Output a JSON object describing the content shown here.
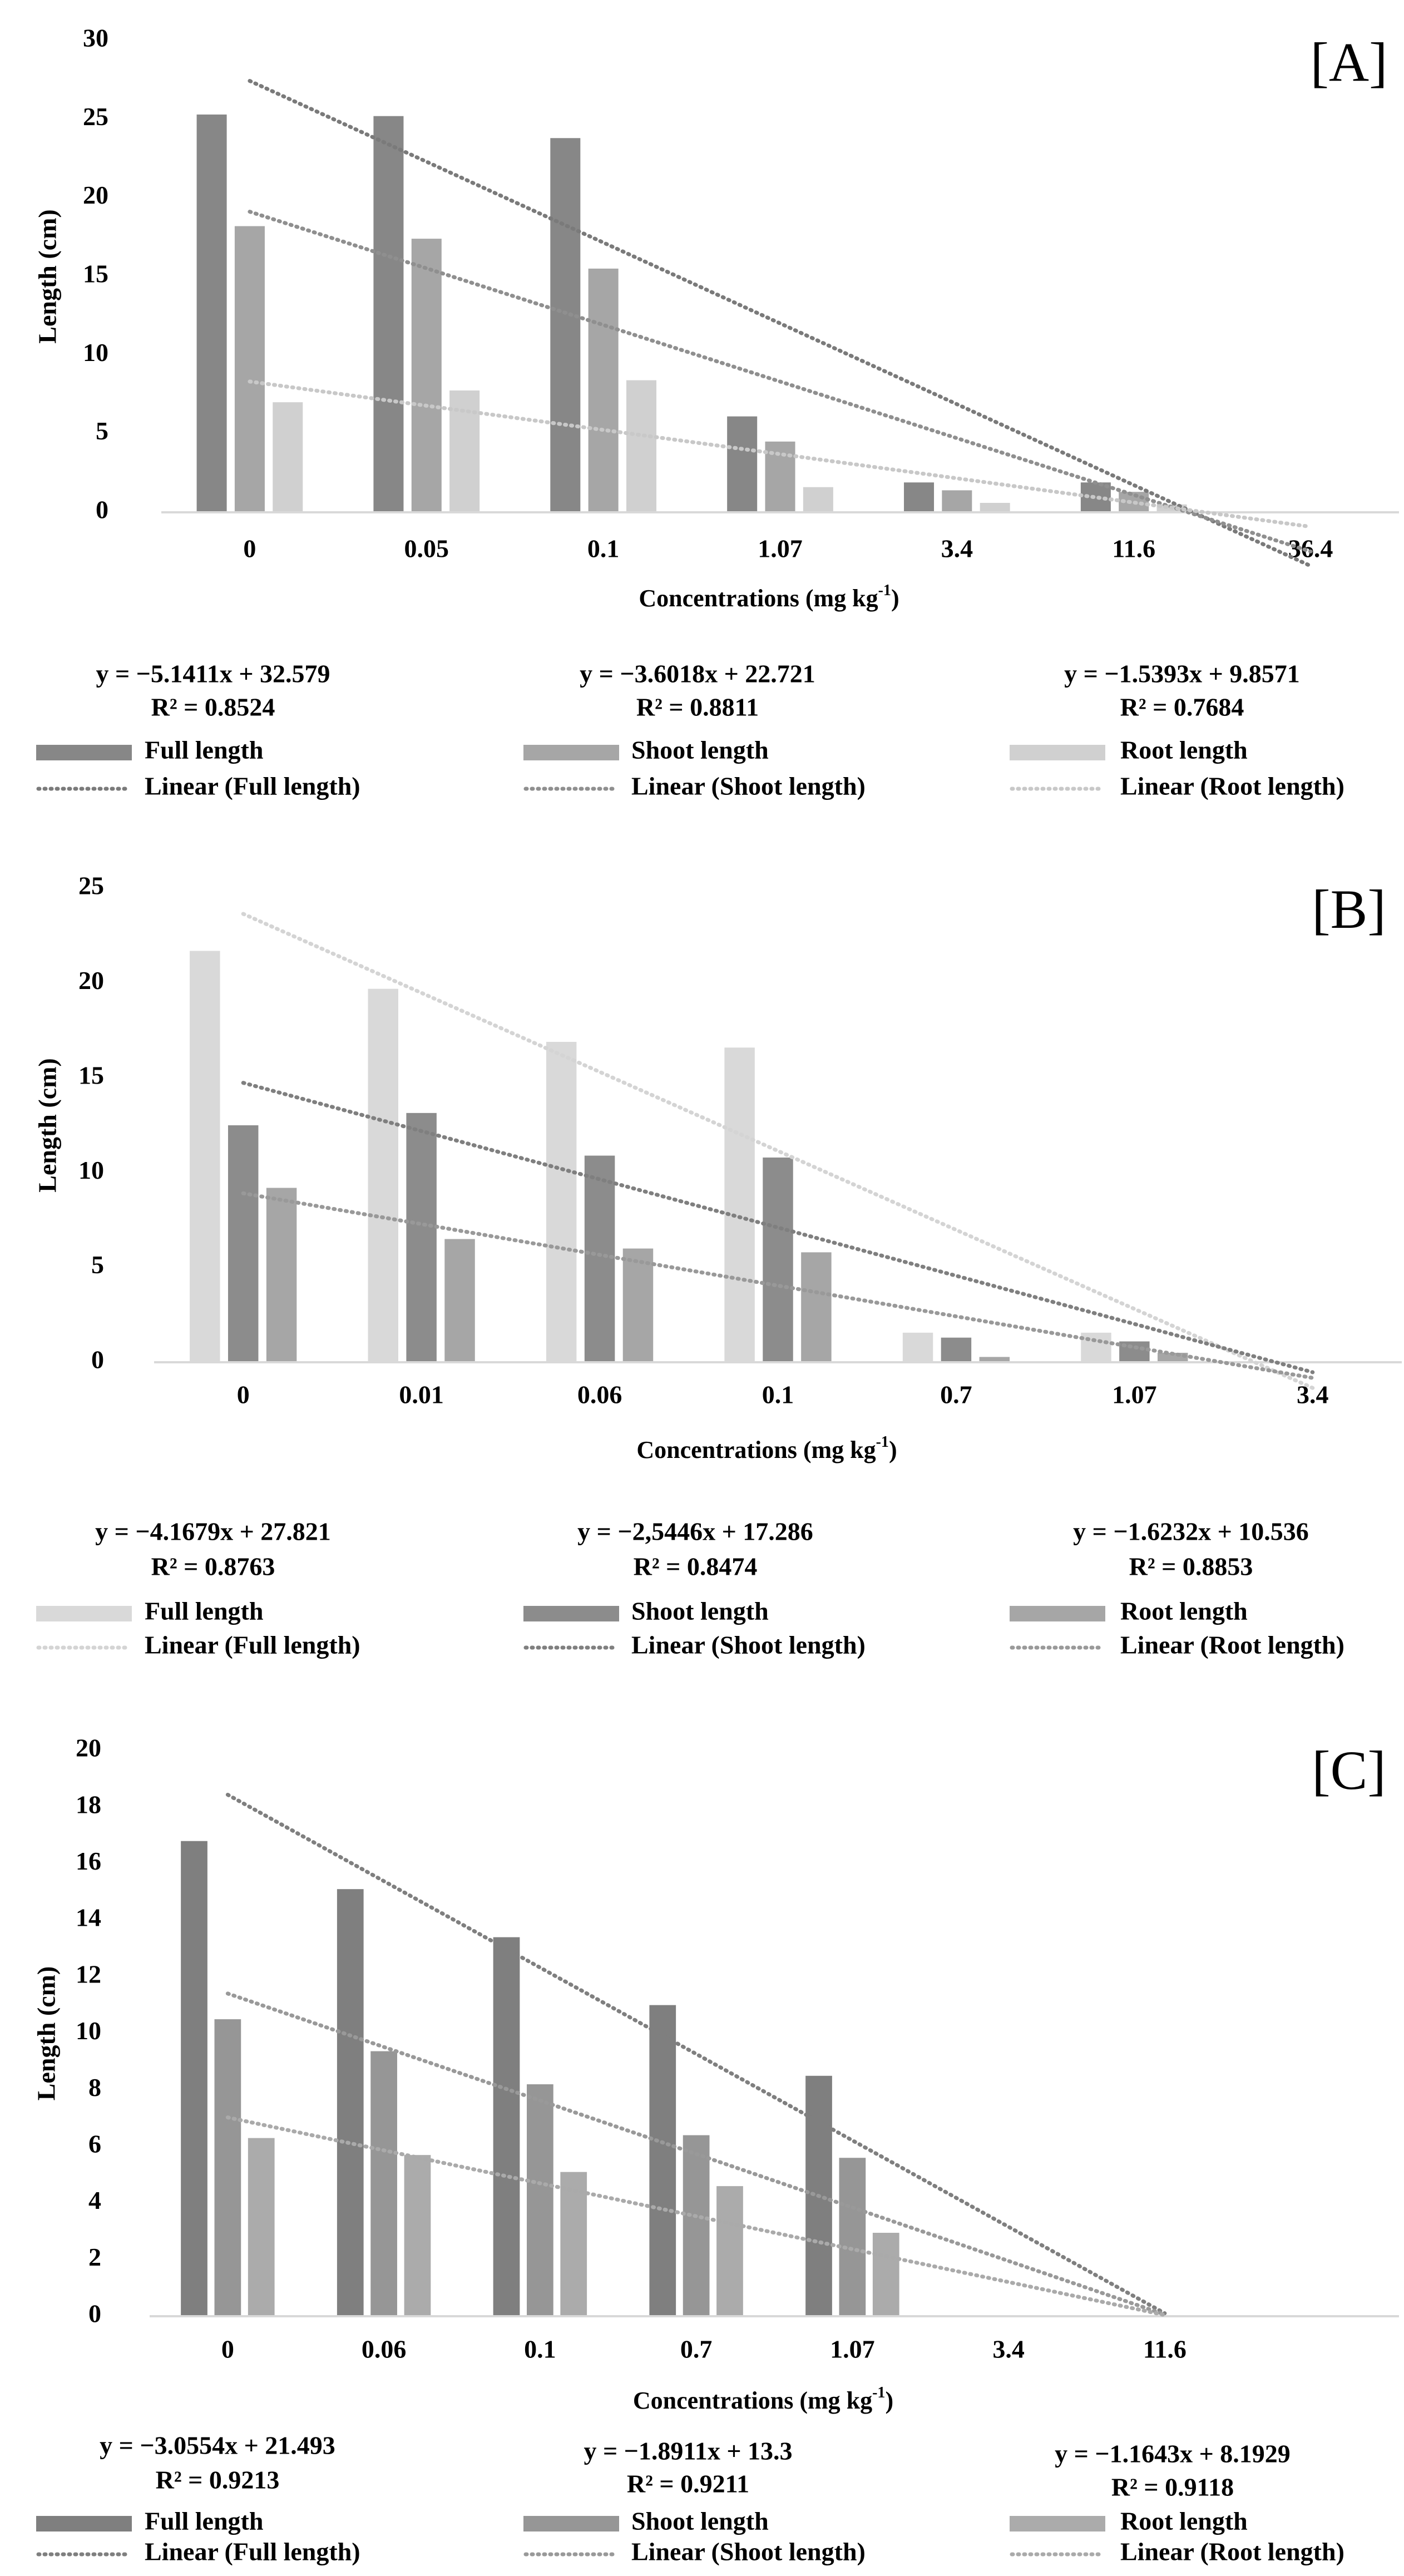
{
  "chart_data": [
    {
      "type": "bar",
      "panel_label": "[A]",
      "ylabel": "Length (cm)",
      "xlabel": "Concentrations (mg kg",
      "xlabel_sup": "-1",
      "xlabel_end": ")",
      "ylim": [
        0,
        30
      ],
      "yticks": [
        "0",
        "5",
        "10",
        "15",
        "20",
        "25",
        "30"
      ],
      "categories": [
        "0",
        "0.05",
        "0.1",
        "1.07",
        "3.4",
        "11.6",
        "36.4"
      ],
      "series": [
        {
          "name": "Full length",
          "color": "#878787",
          "values": [
            25.3,
            25.2,
            23.8,
            6.1,
            1.9,
            1.9,
            0
          ]
        },
        {
          "name": "Shoot length",
          "color": "#a6a6a6",
          "values": [
            18.2,
            17.4,
            15.5,
            4.5,
            1.4,
            1.3,
            0
          ]
        },
        {
          "name": "Root length",
          "color": "#d0d0d0",
          "values": [
            7.0,
            7.75,
            8.4,
            1.6,
            0.6,
            0.5,
            0
          ]
        }
      ],
      "trendlines": [
        {
          "name": "Linear (Full length)",
          "color": "#7a7a7a",
          "slope": -5.1411,
          "intercept": 32.579,
          "equation": "y = −5.1411x + 32.579",
          "r2": "R² = 0.8524"
        },
        {
          "name": "Linear (Shoot length)",
          "color": "#8f8f8f",
          "slope": -3.6018,
          "intercept": 22.721,
          "equation": "y = −3.6018x + 22.721",
          "r2": "R² = 0.8811"
        },
        {
          "name": "Linear (Root length)",
          "color": "#c8c8c8",
          "slope": -1.5393,
          "intercept": 9.8571,
          "equation": "y = −1.5393x + 9.8571",
          "r2": "R² = 0.7684"
        }
      ],
      "legend": "bottom"
    },
    {
      "type": "bar",
      "panel_label": "[B]",
      "ylabel": "Length  (cm)",
      "xlabel": "Concentrations (mg kg",
      "xlabel_sup": "-1",
      "xlabel_end": ")",
      "ylim": [
        0,
        25
      ],
      "yticks": [
        "0",
        "5",
        "10",
        "15",
        "20",
        "25"
      ],
      "categories": [
        "0",
        "0.01",
        "0.06",
        "0.1",
        "0.7",
        "1.07",
        "3.4"
      ],
      "series": [
        {
          "name": "Full length",
          "color": "#d9d9d9",
          "values": [
            21.7,
            19.7,
            16.9,
            16.6,
            1.56,
            1.56,
            0
          ]
        },
        {
          "name": "Shoot length",
          "color": "#8c8c8c",
          "values": [
            12.5,
            13.15,
            10.9,
            10.8,
            1.3,
            1.1,
            0
          ]
        },
        {
          "name": "Root length",
          "color": "#a6a6a6",
          "values": [
            9.2,
            6.5,
            6.0,
            5.8,
            0.28,
            0.5,
            0
          ]
        }
      ],
      "trendlines": [
        {
          "name": "Linear (Full length)",
          "color": "#d4d4d4",
          "slope": -4.1679,
          "intercept": 27.821,
          "equation": "y = −4.1679x + 27.821",
          "r2": "R² = 0.8763"
        },
        {
          "name": "Linear (Shoot length)",
          "color": "#7f7f7f",
          "slope": -2.5446,
          "intercept": 17.286,
          "equation": "y = −2,5446x + 17.286",
          "r2": "R² = 0.8474"
        },
        {
          "name": "Linear (Root length)",
          "color": "#999999",
          "slope": -1.6232,
          "intercept": 10.536,
          "equation": "y = −1.6232x + 10.536",
          "r2": "R² = 0.8853"
        }
      ],
      "legend": "bottom"
    },
    {
      "type": "bar",
      "panel_label": "[C]",
      "ylabel": "Length (cm)",
      "xlabel": "Concentrations (mg kg",
      "xlabel_sup": "-1",
      "xlabel_end": ")",
      "ylim": [
        0,
        20
      ],
      "yticks": [
        "0",
        "2",
        "4",
        "6",
        "8",
        "10",
        "12",
        "14",
        "16",
        "18",
        "20"
      ],
      "categories": [
        "0",
        "0.06",
        "0.1",
        "0.7",
        "1.07",
        "3.4",
        "11.6",
        ""
      ],
      "series": [
        {
          "name": "Full length",
          "color": "#7f7f7f",
          "values": [
            16.8,
            15.1,
            13.4,
            11.0,
            8.5,
            0,
            0,
            0
          ]
        },
        {
          "name": "Shoot length",
          "color": "#969696",
          "values": [
            10.5,
            9.37,
            8.2,
            6.4,
            5.6,
            0,
            0,
            0
          ]
        },
        {
          "name": "Root length",
          "color": "#ababab",
          "values": [
            6.3,
            5.7,
            5.1,
            4.6,
            2.95,
            0,
            0,
            0
          ]
        }
      ],
      "trendlines": [
        {
          "name": "Linear (Full length)",
          "color": "#7f7f7f",
          "slope": -3.0554,
          "intercept": 21.493,
          "equation": "y = −3.0554x + 21.493",
          "r2": "R² = 0.9213"
        },
        {
          "name": "Linear (Shoot length)",
          "color": "#999999",
          "slope": -1.8911,
          "intercept": 13.3,
          "equation": "y = −1.8911x + 13.3",
          "r2": "R² = 0.9211"
        },
        {
          "name": "Linear (Root length)",
          "color": "#aaaaaa",
          "slope": -1.1643,
          "intercept": 8.1929,
          "equation": "y = −1.1643x + 8.1929",
          "r2": "R² = 0.9118"
        }
      ],
      "legend": "bottom"
    }
  ]
}
